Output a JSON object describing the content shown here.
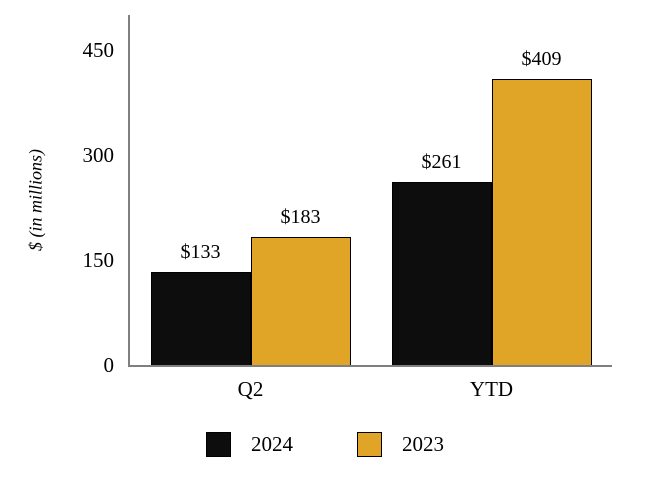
{
  "chart_data": {
    "type": "bar",
    "categories": [
      "Q2",
      "YTD"
    ],
    "series": [
      {
        "name": "2024",
        "color": "#0d0d0d",
        "values": [
          133,
          261
        ]
      },
      {
        "name": "2023",
        "color": "#e0a526",
        "values": [
          183,
          409
        ]
      }
    ],
    "value_prefix": "$",
    "value_labels": [
      [
        "$133",
        "$261"
      ],
      [
        "$183",
        "$409"
      ]
    ],
    "title": "",
    "xlabel": "",
    "ylabel": "$ (in millions)",
    "yticks": [
      0,
      150,
      300,
      450
    ],
    "ylim": [
      0,
      500
    ],
    "grid": false,
    "legend_position": "bottom",
    "axis_color": "#7f7f7f",
    "bar_border_color": "#000000"
  }
}
